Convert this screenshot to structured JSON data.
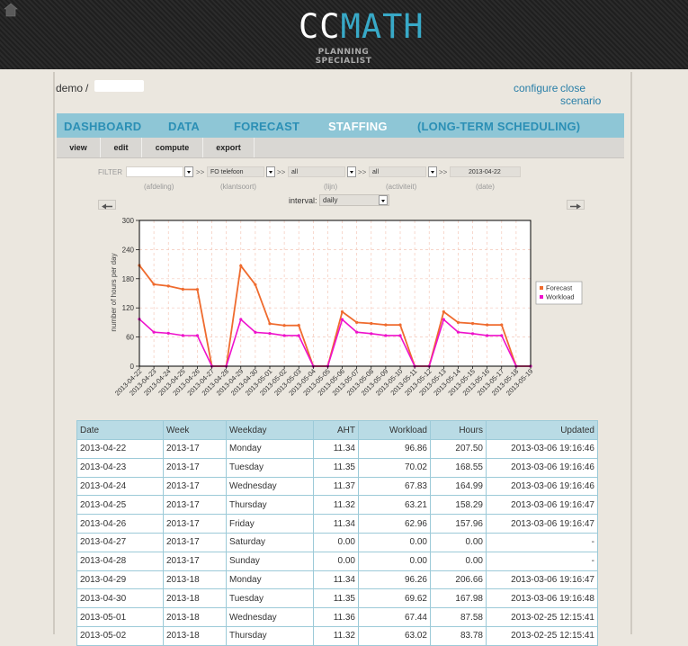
{
  "header": {
    "logo": {
      "cc": "CC",
      "math": "MATH",
      "subtitle": "PLANNING SPECIALIST"
    },
    "home_icon": "home-icon"
  },
  "top": {
    "user": "demo",
    "separator": "/",
    "configure": "configure",
    "close_scenario": "close scenario"
  },
  "nav": {
    "tabs": [
      "DASHBOARD",
      "DATA",
      "FORECAST",
      "STAFFING",
      "(LONG-TERM SCHEDULING)"
    ],
    "active": "STAFFING"
  },
  "subnav": [
    "view",
    "edit",
    "compute",
    "export"
  ],
  "filter": {
    "label": "FILTER",
    "afdeling": {
      "value": "",
      "label": "(afdeling)"
    },
    "klantsoort": {
      "value": "FO telefoon",
      "label": "(klantsoort)"
    },
    "lijn": {
      "value": "all",
      "label": "(lijn)"
    },
    "activiteit": {
      "value": "all",
      "label": "(activiteit)"
    },
    "date": {
      "value": "2013-04-22",
      "label": "(date)"
    },
    "arrow": ">>"
  },
  "interval": {
    "label": "interval:",
    "value": "daily"
  },
  "nav_arrows": {
    "prev": "prev-arrow-icon",
    "next": "next-arrow-icon"
  },
  "colors": {
    "forecast": "#ef6b2e",
    "workload": "#ee11cc",
    "accent": "#38a9c7"
  },
  "chart_data": {
    "type": "line",
    "ylabel": "number of hours per day",
    "ylim": [
      0,
      300
    ],
    "yticks": [
      0,
      60,
      120,
      180,
      240,
      300
    ],
    "grid": true,
    "legend_position": "right",
    "x": [
      "2013-04-22",
      "2013-04-23",
      "2013-04-24",
      "2013-04-25",
      "2013-04-26",
      "2013-04-27",
      "2013-04-28",
      "2013-04-29",
      "2013-04-30",
      "2013-05-01",
      "2013-05-02",
      "2013-05-03",
      "2013-05-04",
      "2013-05-05",
      "2013-05-06",
      "2013-05-07",
      "2013-05-08",
      "2013-05-09",
      "2013-05-10",
      "2013-05-11",
      "2013-05-12",
      "2013-05-13",
      "2013-05-14",
      "2013-05-15",
      "2013-05-16",
      "2013-05-17",
      "2013-05-18",
      "2013-05-19"
    ],
    "series": [
      {
        "name": "Forecast",
        "values": [
          207.5,
          168.55,
          164.99,
          158.29,
          157.96,
          0,
          0,
          206.66,
          167.98,
          87.58,
          83.78,
          84,
          0,
          0,
          112,
          90,
          88,
          85,
          85,
          0,
          0,
          112,
          90,
          88,
          85,
          85,
          0,
          0
        ]
      },
      {
        "name": "Workload",
        "values": [
          96.86,
          70.02,
          67.83,
          63.21,
          62.96,
          0,
          0,
          96.26,
          69.62,
          67.44,
          63.02,
          63,
          0,
          0,
          96,
          70,
          67,
          63,
          63,
          0,
          0,
          96,
          70,
          67,
          63,
          63,
          0,
          0
        ]
      }
    ]
  },
  "table": {
    "columns": [
      "Date",
      "Week",
      "Weekday",
      "AHT",
      "Workload",
      "Hours",
      "Updated"
    ],
    "rows": [
      [
        "2013-04-22",
        "2013-17",
        "Monday",
        "11.34",
        "96.86",
        "207.50",
        "2013-03-06 19:16:46"
      ],
      [
        "2013-04-23",
        "2013-17",
        "Tuesday",
        "11.35",
        "70.02",
        "168.55",
        "2013-03-06 19:16:46"
      ],
      [
        "2013-04-24",
        "2013-17",
        "Wednesday",
        "11.37",
        "67.83",
        "164.99",
        "2013-03-06 19:16:46"
      ],
      [
        "2013-04-25",
        "2013-17",
        "Thursday",
        "11.32",
        "63.21",
        "158.29",
        "2013-03-06 19:16:47"
      ],
      [
        "2013-04-26",
        "2013-17",
        "Friday",
        "11.34",
        "62.96",
        "157.96",
        "2013-03-06 19:16:47"
      ],
      [
        "2013-04-27",
        "2013-17",
        "Saturday",
        "0.00",
        "0.00",
        "0.00",
        "-"
      ],
      [
        "2013-04-28",
        "2013-17",
        "Sunday",
        "0.00",
        "0.00",
        "0.00",
        "-"
      ],
      [
        "2013-04-29",
        "2013-18",
        "Monday",
        "11.34",
        "96.26",
        "206.66",
        "2013-03-06 19:16:47"
      ],
      [
        "2013-04-30",
        "2013-18",
        "Tuesday",
        "11.35",
        "69.62",
        "167.98",
        "2013-03-06 19:16:48"
      ],
      [
        "2013-05-01",
        "2013-18",
        "Wednesday",
        "11.36",
        "67.44",
        "87.58",
        "2013-02-25 12:15:41"
      ],
      [
        "2013-05-02",
        "2013-18",
        "Thursday",
        "11.32",
        "63.02",
        "83.78",
        "2013-02-25 12:15:41"
      ]
    ]
  }
}
